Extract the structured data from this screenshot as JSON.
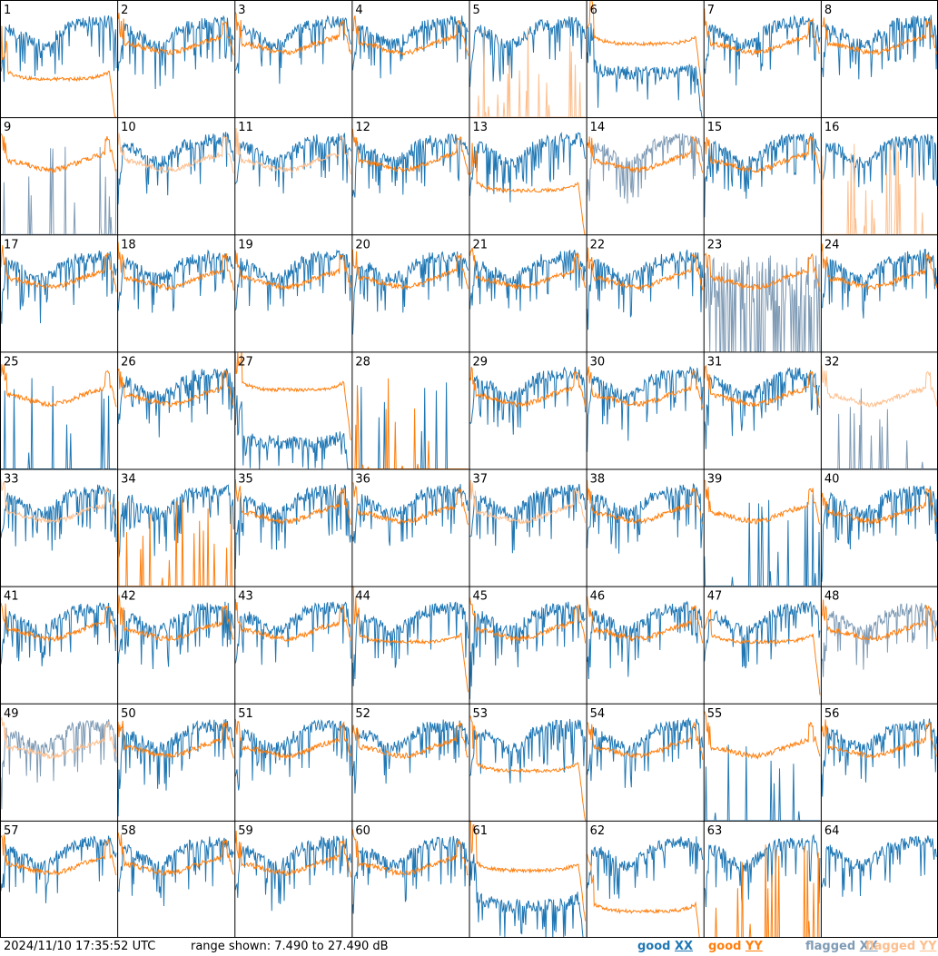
{
  "footer": {
    "timestamp": "2024/11/10 17:35:52 UTC",
    "range_text": "range shown: 7.490 to 27.490 dB"
  },
  "legend": [
    {
      "key": "good_xx",
      "word": "good",
      "pol": "XX",
      "color": "#1f77b4"
    },
    {
      "key": "good_yy",
      "word": "good",
      "pol": "YY",
      "color": "#ff7f0e"
    },
    {
      "key": "flagged_xx",
      "word": "flagged",
      "pol": "XX",
      "color": "#7f9bb5"
    },
    {
      "key": "flagged_yy",
      "word": "flagged",
      "pol": "YY",
      "color": "#fdbf8e"
    }
  ],
  "chart_data": {
    "type": "line",
    "ylim": [
      7.49,
      27.49
    ],
    "unit": "dB",
    "panels": [
      {
        "id": "1",
        "xx": "good",
        "yy": "good",
        "shape": "bathtub",
        "xx_level": 20,
        "yy_level": 14
      },
      {
        "id": "2",
        "xx": "good",
        "yy": "good",
        "shape": "normal"
      },
      {
        "id": "3",
        "xx": "good",
        "yy": "good",
        "shape": "normal"
      },
      {
        "id": "4",
        "xx": "good",
        "yy": "good",
        "shape": "normal"
      },
      {
        "id": "5",
        "xx": "good",
        "yy": "flagged",
        "shape": "spikes_yy"
      },
      {
        "id": "6",
        "xx": "good",
        "yy": "good",
        "shape": "bathtub",
        "xx_level": 15,
        "yy_level": 20
      },
      {
        "id": "7",
        "xx": "good",
        "yy": "good",
        "shape": "normal"
      },
      {
        "id": "8",
        "xx": "good",
        "yy": "good",
        "shape": "normal"
      },
      {
        "id": "9",
        "xx": "flagged",
        "yy": "good",
        "shape": "spikes_xx"
      },
      {
        "id": "10",
        "xx": "good",
        "yy": "flagged",
        "shape": "normal"
      },
      {
        "id": "11",
        "xx": "good",
        "yy": "flagged",
        "shape": "normal"
      },
      {
        "id": "12",
        "xx": "good",
        "yy": "good",
        "shape": "normal"
      },
      {
        "id": "13",
        "xx": "good",
        "yy": "good",
        "shape": "bathtub",
        "xx_level": 21,
        "yy_level": 15
      },
      {
        "id": "14",
        "xx": "flagged",
        "yy": "good",
        "shape": "normal"
      },
      {
        "id": "15",
        "xx": "good",
        "yy": "good",
        "shape": "normal"
      },
      {
        "id": "16",
        "xx": "good",
        "yy": "flagged",
        "shape": "spikes_yy"
      },
      {
        "id": "17",
        "xx": "good",
        "yy": "good",
        "shape": "normal"
      },
      {
        "id": "18",
        "xx": "good",
        "yy": "good",
        "shape": "normal"
      },
      {
        "id": "19",
        "xx": "good",
        "yy": "good",
        "shape": "normal"
      },
      {
        "id": "20",
        "xx": "good",
        "yy": "good",
        "shape": "normal"
      },
      {
        "id": "21",
        "xx": "good",
        "yy": "good",
        "shape": "normal"
      },
      {
        "id": "22",
        "xx": "good",
        "yy": "good",
        "shape": "normal"
      },
      {
        "id": "23",
        "xx": "flagged",
        "yy": "good",
        "shape": "noisy_xx"
      },
      {
        "id": "24",
        "xx": "good",
        "yy": "good",
        "shape": "normal"
      },
      {
        "id": "25",
        "xx": "good",
        "yy": "good",
        "shape": "spikes_xx"
      },
      {
        "id": "26",
        "xx": "good",
        "yy": "good",
        "shape": "normal"
      },
      {
        "id": "27",
        "xx": "good",
        "yy": "good",
        "shape": "bathtub",
        "xx_level": 12,
        "yy_level": 21
      },
      {
        "id": "28",
        "xx": "good",
        "yy": "good",
        "shape": "spikes_both"
      },
      {
        "id": "29",
        "xx": "good",
        "yy": "good",
        "shape": "normal"
      },
      {
        "id": "30",
        "xx": "good",
        "yy": "good",
        "shape": "normal"
      },
      {
        "id": "31",
        "xx": "good",
        "yy": "good",
        "shape": "normal"
      },
      {
        "id": "32",
        "xx": "flagged",
        "yy": "flagged",
        "shape": "spikes_xx"
      },
      {
        "id": "33",
        "xx": "good",
        "yy": "flagged",
        "shape": "normal"
      },
      {
        "id": "34",
        "xx": "good",
        "yy": "good",
        "shape": "spikes_yy"
      },
      {
        "id": "35",
        "xx": "good",
        "yy": "good",
        "shape": "normal"
      },
      {
        "id": "36",
        "xx": "good",
        "yy": "good",
        "shape": "normal"
      },
      {
        "id": "37",
        "xx": "good",
        "yy": "flagged",
        "shape": "normal"
      },
      {
        "id": "38",
        "xx": "good",
        "yy": "good",
        "shape": "normal"
      },
      {
        "id": "39",
        "xx": "good",
        "yy": "good",
        "shape": "spikes_xx"
      },
      {
        "id": "40",
        "xx": "good",
        "yy": "good",
        "shape": "normal"
      },
      {
        "id": "41",
        "xx": "good",
        "yy": "good",
        "shape": "normal"
      },
      {
        "id": "42",
        "xx": "good",
        "yy": "good",
        "shape": "normal"
      },
      {
        "id": "43",
        "xx": "good",
        "yy": "good",
        "shape": "normal"
      },
      {
        "id": "44",
        "xx": "good",
        "yy": "good",
        "shape": "bathtub",
        "xx_level": 20,
        "yy_level": 18
      },
      {
        "id": "45",
        "xx": "good",
        "yy": "good",
        "shape": "normal"
      },
      {
        "id": "46",
        "xx": "good",
        "yy": "good",
        "shape": "normal"
      },
      {
        "id": "47",
        "xx": "good",
        "yy": "good",
        "shape": "bathtub",
        "xx_level": 19,
        "yy_level": 18
      },
      {
        "id": "48",
        "xx": "flagged",
        "yy": "good",
        "shape": "normal"
      },
      {
        "id": "49",
        "xx": "flagged",
        "yy": "flagged",
        "shape": "normal"
      },
      {
        "id": "50",
        "xx": "good",
        "yy": "good",
        "shape": "normal"
      },
      {
        "id": "51",
        "xx": "good",
        "yy": "good",
        "shape": "normal"
      },
      {
        "id": "52",
        "xx": "good",
        "yy": "good",
        "shape": "normal"
      },
      {
        "id": "53",
        "xx": "good",
        "yy": "good",
        "shape": "bathtub",
        "xx_level": 19,
        "yy_level": 16
      },
      {
        "id": "54",
        "xx": "good",
        "yy": "good",
        "shape": "normal"
      },
      {
        "id": "55",
        "xx": "good",
        "yy": "good",
        "shape": "spikes_xx"
      },
      {
        "id": "56",
        "xx": "good",
        "yy": "good",
        "shape": "normal"
      },
      {
        "id": "57",
        "xx": "good",
        "yy": "good",
        "shape": "normal"
      },
      {
        "id": "58",
        "xx": "good",
        "yy": "good",
        "shape": "normal"
      },
      {
        "id": "59",
        "xx": "good",
        "yy": "good",
        "shape": "normal"
      },
      {
        "id": "60",
        "xx": "good",
        "yy": "good",
        "shape": "normal"
      },
      {
        "id": "61",
        "xx": "good",
        "yy": "good",
        "shape": "bathtub",
        "xx_level": 13,
        "yy_level": 19
      },
      {
        "id": "62",
        "xx": "good",
        "yy": "good",
        "shape": "bathtub",
        "xx_level": 21,
        "yy_level": 12
      },
      {
        "id": "63",
        "xx": "good",
        "yy": "good",
        "shape": "spikes_yy"
      },
      {
        "id": "64",
        "xx": "good",
        "yy": "good",
        "shape": "xx_only"
      }
    ]
  }
}
